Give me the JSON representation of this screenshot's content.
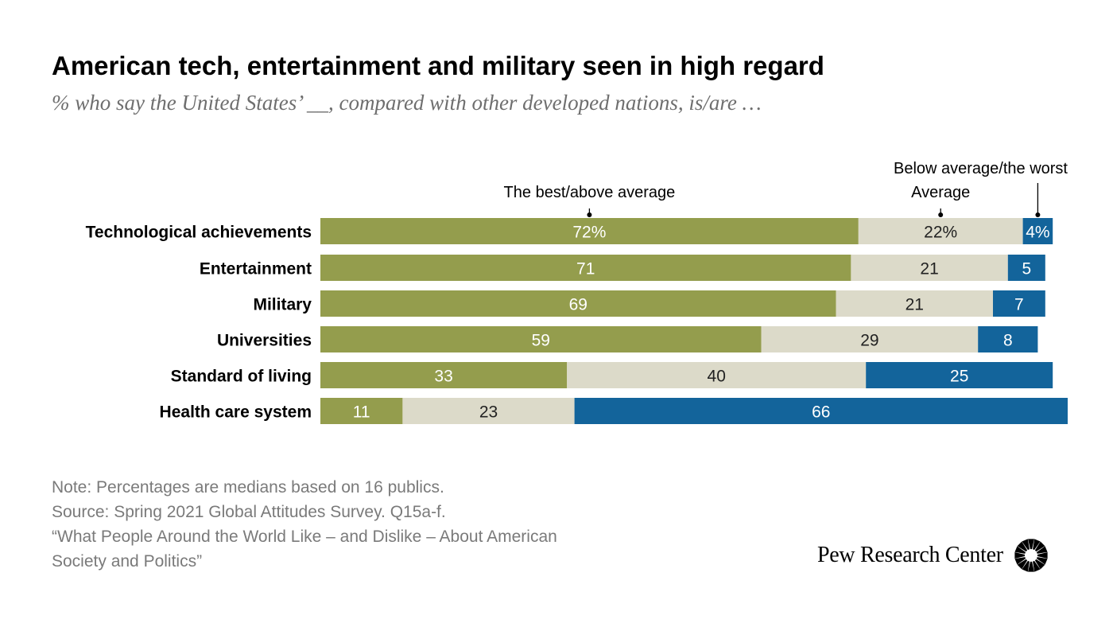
{
  "title": "American tech, entertainment and military seen in high regard",
  "subtitle": "% who say the United States’ __, compared with other developed nations, is/are …",
  "chart_data": {
    "type": "bar",
    "orientation": "horizontal",
    "stacked": true,
    "categories": [
      "Technological achievements",
      "Entertainment",
      "Military",
      "Universities",
      "Standard of living",
      "Health care system"
    ],
    "series": [
      {
        "name": "The best/above average",
        "values": [
          72,
          71,
          69,
          59,
          33,
          11
        ],
        "color": "#949d4d",
        "label_color": "#ffffff"
      },
      {
        "name": "Average",
        "values": [
          22,
          21,
          21,
          29,
          40,
          23
        ],
        "color": "#dcdac9",
        "label_color": "#222222"
      },
      {
        "name": "Below average/the worst",
        "values": [
          4,
          5,
          7,
          8,
          25,
          66
        ],
        "color": "#13649b",
        "label_color": "#ffffff"
      }
    ],
    "first_row_suffix": "%",
    "xlim": [
      0,
      100
    ],
    "grid": false,
    "legend": "labels above first bar"
  },
  "notes": [
    "Note: Percentages are medians based on 16 publics.",
    "Source: Spring 2021 Global Attitudes Survey. Q15a-f.",
    "“What People Around the World Like – and Dislike – About American",
    "Society and Politics”"
  ],
  "brand": "Pew Research Center"
}
